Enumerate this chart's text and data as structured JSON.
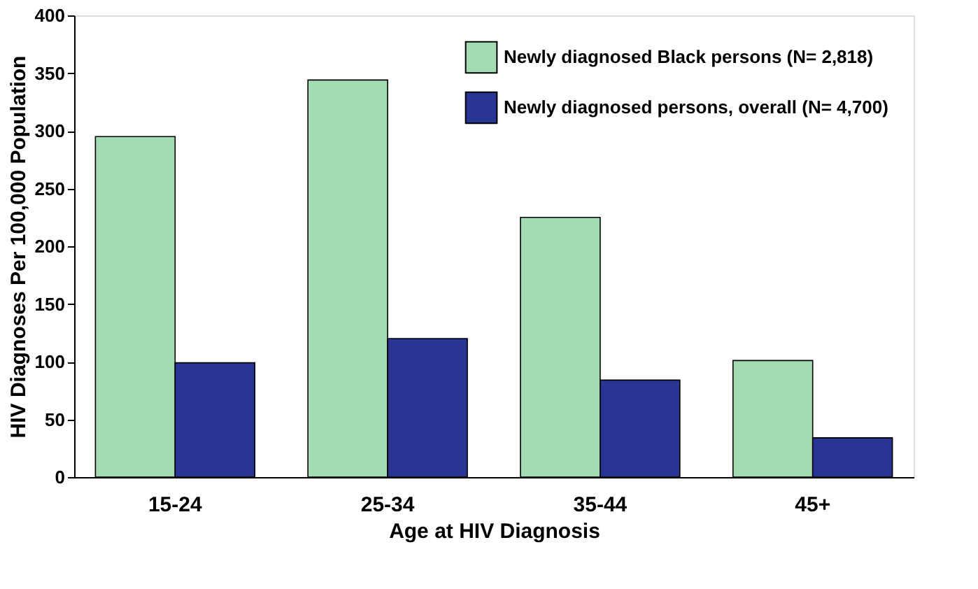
{
  "chart_data": {
    "type": "bar",
    "xlabel": "Age at HIV Diagnosis",
    "ylabel": "HIV Diagnoses Per 100,000 Population",
    "categories": [
      "15-24",
      "25-34",
      "35-44",
      "45+"
    ],
    "series": [
      {
        "name": "Newly diagnosed Black persons (N= 2,818)",
        "color": "#a3dbb2",
        "values": [
          295,
          344,
          225,
          101
        ]
      },
      {
        "name": "Newly diagnosed persons, overall (N= 4,700)",
        "color": "#283593",
        "values": [
          99,
          120,
          84,
          34
        ]
      }
    ],
    "ylim": [
      0,
      400
    ],
    "yticks": [
      0,
      50,
      100,
      150,
      200,
      250,
      300,
      350,
      400
    ],
    "grid": false,
    "legend": "top right"
  }
}
